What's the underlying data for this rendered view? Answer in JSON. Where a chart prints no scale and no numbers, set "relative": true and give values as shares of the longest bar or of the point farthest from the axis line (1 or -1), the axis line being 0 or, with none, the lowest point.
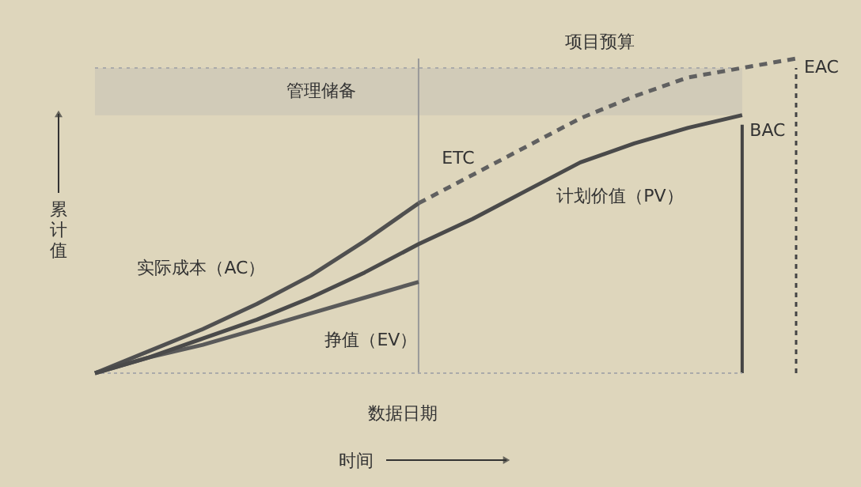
{
  "chart_data": {
    "type": "line",
    "relative": true,
    "xlabel": "时间",
    "ylabel": "累计值",
    "tick_labels": false,
    "grid": false,
    "marker": "none",
    "categories": [
      null,
      null,
      null,
      null,
      null,
      null,
      null,
      null,
      null,
      null,
      null,
      null,
      null,
      null
    ],
    "series": [
      {
        "name": "实际成本（AC）",
        "color": "#505050",
        "values": [
          0,
          0.07,
          0.14,
          0.22,
          0.31,
          0.42,
          0.54,
          null,
          null,
          null,
          null,
          null,
          null,
          null
        ]
      },
      {
        "name": "挣值（EV）",
        "color": "#5a5a5a",
        "values": [
          0,
          0.05,
          0.09,
          0.14,
          0.19,
          0.24,
          0.29,
          null,
          null,
          null,
          null,
          null,
          null,
          null
        ]
      },
      {
        "name": "计划价值（PV）",
        "color": "#4a4a4a",
        "values": [
          0,
          0.05,
          0.11,
          0.17,
          0.24,
          0.32,
          0.41,
          0.49,
          0.58,
          0.67,
          0.73,
          0.78,
          0.82,
          null
        ]
      },
      {
        "name": "ETC",
        "color": "#606060",
        "line_style": "dashed",
        "values": [
          null,
          null,
          null,
          null,
          null,
          null,
          0.54,
          0.63,
          0.72,
          0.81,
          0.88,
          0.94,
          0.97,
          1.0
        ]
      }
    ],
    "annotations": [
      "数据日期",
      "BAC",
      "EAC"
    ],
    "ref_lines": [
      {
        "axis": "y",
        "value": 0.97,
        "label": "项目预算",
        "color": "#aaaaaa",
        "line_style": "dotted"
      }
    ],
    "bands": [
      {
        "axis": "y",
        "from": 0.82,
        "to": 0.97,
        "label": "管理储备",
        "color": "#aaaaaa"
      }
    ]
  }
}
